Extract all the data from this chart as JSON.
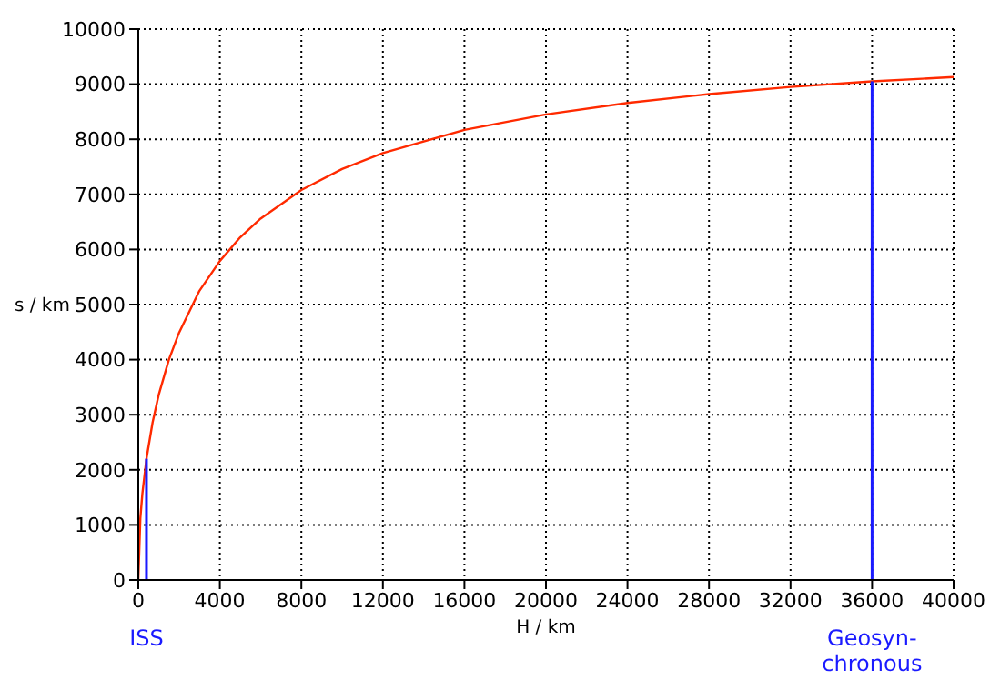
{
  "chart_data": {
    "type": "line",
    "xlabel": "H / km",
    "ylabel": "s / km",
    "x": [
      0,
      100,
      200,
      400,
      700,
      1000,
      1500,
      2000,
      3000,
      4000,
      5000,
      6000,
      8000,
      10000,
      12000,
      16000,
      20000,
      24000,
      28000,
      32000,
      36000,
      40000
    ],
    "series": [
      {
        "color": "#ff2a00",
        "values": [
          0,
          1120,
          1570,
          2200,
          2860,
          3360,
          4000,
          4490,
          5250,
          5790,
          6220,
          6560,
          7080,
          7460,
          7750,
          8170,
          8450,
          8660,
          8820,
          8950,
          9050,
          9130
        ]
      }
    ],
    "xlim": [
      0,
      40000
    ],
    "xticks": [
      0,
      4000,
      8000,
      12000,
      16000,
      20000,
      24000,
      28000,
      32000,
      36000,
      40000
    ],
    "ylim": [
      0,
      10000
    ],
    "yticks": [
      0,
      1000,
      2000,
      3000,
      4000,
      5000,
      6000,
      7000,
      8000,
      9000,
      10000
    ],
    "grid": true,
    "ref_lines": [
      {
        "axis": "x",
        "value": 400,
        "label": "ISS",
        "color": "#1a1aff"
      },
      {
        "axis": "x",
        "value": 36000,
        "label": "Geosyn-\nchronous",
        "color": "#1a1aff"
      }
    ]
  }
}
